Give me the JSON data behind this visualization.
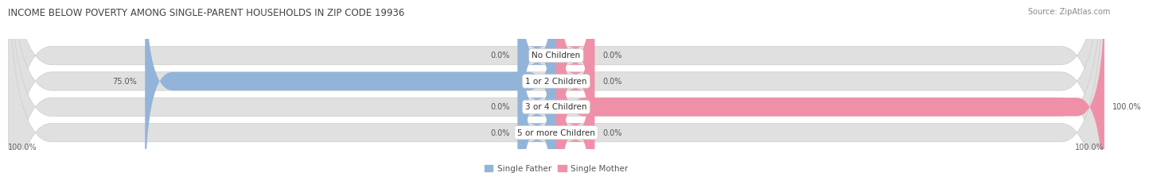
{
  "title": "INCOME BELOW POVERTY AMONG SINGLE-PARENT HOUSEHOLDS IN ZIP CODE 19936",
  "source": "Source: ZipAtlas.com",
  "categories": [
    "No Children",
    "1 or 2 Children",
    "3 or 4 Children",
    "5 or more Children"
  ],
  "single_father": [
    0.0,
    75.0,
    0.0,
    0.0
  ],
  "single_mother": [
    0.0,
    0.0,
    100.0,
    0.0
  ],
  "father_color": "#92b4d9",
  "mother_color": "#f090a8",
  "bar_bg_color": "#e0e0e0",
  "bar_bg_outline": "#d0d0d0",
  "figsize": [
    14.06,
    2.32
  ],
  "title_fontsize": 8.5,
  "label_fontsize": 7.0,
  "category_fontsize": 7.5,
  "source_fontsize": 7.0,
  "legend_fontsize": 7.5,
  "xlim": [
    -100,
    100
  ],
  "legend_labels": [
    "Single Father",
    "Single Mother"
  ],
  "min_bar_pct": 7
}
